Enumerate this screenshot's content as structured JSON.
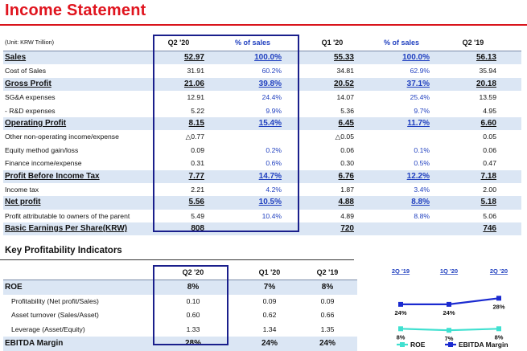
{
  "title": "Income Statement",
  "main": {
    "unit": "(Unit: KRW Trillion)",
    "headers": [
      "Q2 '20",
      "% of sales",
      "Q1 '20",
      "% of sales",
      "Q2 '19"
    ],
    "rows": [
      {
        "label": "Sales",
        "style": "hl",
        "v": [
          "52.97",
          "100.0%",
          "55.33",
          "100.0%",
          "56.13"
        ]
      },
      {
        "label": "Cost of Sales",
        "style": "",
        "v": [
          "31.91",
          "60.2%",
          "34.81",
          "62.9%",
          "35.94"
        ]
      },
      {
        "label": "Gross Profit",
        "style": "hl",
        "v": [
          "21.06",
          "39.8%",
          "20.52",
          "37.1%",
          "20.18"
        ]
      },
      {
        "label": "SG&A expenses",
        "style": "",
        "v": [
          "12.91",
          "24.4%",
          "14.07",
          "25.4%",
          "13.59"
        ]
      },
      {
        "label": " - R&D expenses",
        "style": "",
        "v": [
          "5.22",
          "9.9%",
          "5.36",
          "9.7%",
          "4.95"
        ]
      },
      {
        "label": "Operating Profit",
        "style": "hl",
        "v": [
          "8.15",
          "15.4%",
          "6.45",
          "11.7%",
          "6.60"
        ]
      },
      {
        "label": "Other non-operating income/expense",
        "style": "",
        "v": [
          "△0.77",
          "",
          "△0.05",
          "",
          "0.05"
        ]
      },
      {
        "label": "Equity method gain/loss",
        "style": "",
        "v": [
          "0.09",
          "0.2%",
          "0.06",
          "0.1%",
          "0.06"
        ]
      },
      {
        "label": "Finance income/expense",
        "style": "",
        "v": [
          "0.31",
          "0.6%",
          "0.30",
          "0.5%",
          "0.47"
        ]
      },
      {
        "label": "Profit Before Income Tax",
        "style": "hl",
        "v": [
          "7.77",
          "14.7%",
          "6.76",
          "12.2%",
          "7.18"
        ]
      },
      {
        "label": "Income tax",
        "style": "",
        "v": [
          "2.21",
          "4.2%",
          "1.87",
          "3.4%",
          "2.00"
        ]
      },
      {
        "label": "Net profit",
        "style": "hl",
        "v": [
          "5.56",
          "10.5%",
          "4.88",
          "8.8%",
          "5.18"
        ]
      },
      {
        "label": "Profit attributable to owners of the parent",
        "style": "",
        "v": [
          "5.49",
          "10.4%",
          "4.89",
          "8.8%",
          "5.06"
        ]
      },
      {
        "label": "Basic Earnings Per Share(KRW)",
        "style": "hl",
        "v": [
          "808",
          "",
          "720",
          "",
          "746"
        ]
      }
    ]
  },
  "kpi": {
    "title": "Key Profitability Indicators",
    "headers": [
      "Q2 '20",
      "Q1 '20",
      "Q2 '19"
    ],
    "rows": [
      {
        "label": "ROE",
        "style": "hl",
        "v": [
          "8%",
          "7%",
          "8%"
        ]
      },
      {
        "label": "Profitability (Net profit/Sales)",
        "style": "ind",
        "v": [
          "0.10",
          "0.09",
          "0.09"
        ]
      },
      {
        "label": "Asset turnover (Sales/Asset)",
        "style": "ind",
        "v": [
          "0.60",
          "0.62",
          "0.66"
        ]
      },
      {
        "label": "Leverage (Asset/Equity)",
        "style": "ind",
        "v": [
          "1.33",
          "1.34",
          "1.35"
        ]
      },
      {
        "label": "EBITDA Margin",
        "style": "hl",
        "v": [
          "28%",
          "24%",
          "24%"
        ]
      }
    ]
  },
  "chart_data": {
    "type": "line",
    "categories": [
      "2Q '19",
      "1Q '20",
      "2Q '20"
    ],
    "series": [
      {
        "name": "ROE",
        "values": [
          8,
          7,
          8
        ],
        "labels": [
          "8%",
          "7%",
          "8%"
        ],
        "color": "#40e0d0"
      },
      {
        "name": "EBITDA Margin",
        "values": [
          24,
          24,
          28
        ],
        "labels": [
          "24%",
          "24%",
          "28%"
        ],
        "color": "#1a2ad0"
      }
    ],
    "legend": "bottom"
  }
}
